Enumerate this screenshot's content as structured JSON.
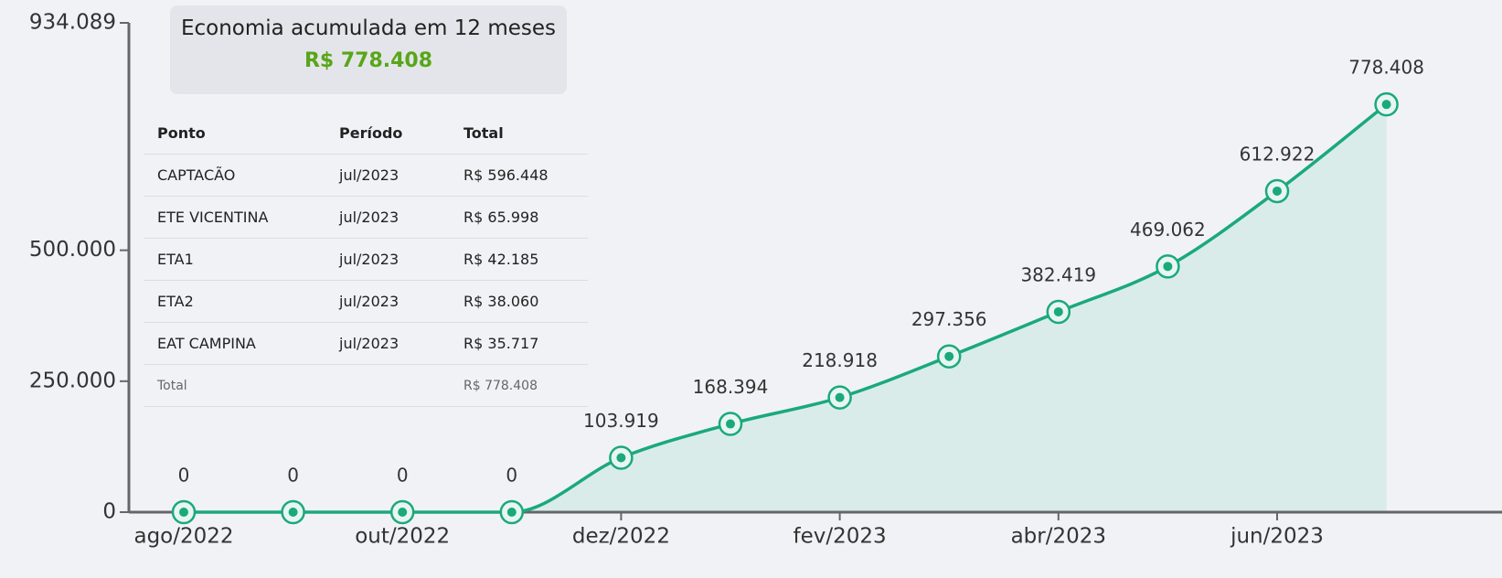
{
  "chart_data": {
    "type": "area",
    "categories": [
      "ago/2022",
      null,
      "out/2022",
      null,
      "dez/2022",
      null,
      "fev/2023",
      null,
      "abr/2023",
      null,
      "jun/2023",
      null
    ],
    "values": [
      0,
      0,
      0,
      0,
      103919,
      168394,
      218918,
      297356,
      382419,
      469062,
      612922,
      778408
    ],
    "value_labels": [
      "0",
      "0",
      "0",
      "0",
      "103.919",
      "168.394",
      "218.918",
      "297.356",
      "382.419",
      "469.062",
      "612.922",
      "778.408"
    ],
    "color": "#1aa97c",
    "fill": "#d9ecea",
    "ylim": [
      0,
      934089
    ],
    "yticks": [
      0,
      {
        "value": 250000,
        "label": "250.000"
      },
      {
        "value": 500000,
        "label": "500.000"
      },
      {
        "value": 934089,
        "label": "934.089"
      }
    ]
  },
  "summary": {
    "title": "Economia acumulada em 12 meses",
    "value": "R$ 778.408"
  },
  "table": {
    "columns": [
      "Ponto",
      "Período",
      "Total"
    ],
    "rows": [
      [
        "CAPTACÃO",
        "jul/2023",
        "R$ 596.448"
      ],
      [
        "ETE VICENTINA",
        "jul/2023",
        "R$ 65.998"
      ],
      [
        "ETA1",
        "jul/2023",
        "R$ 42.185"
      ],
      [
        "ETA2",
        "jul/2023",
        "R$ 38.060"
      ],
      [
        "EAT CAMPINA",
        "jul/2023",
        "R$ 35.717"
      ]
    ],
    "total": {
      "label": "Total",
      "value": "R$ 778.408"
    }
  }
}
